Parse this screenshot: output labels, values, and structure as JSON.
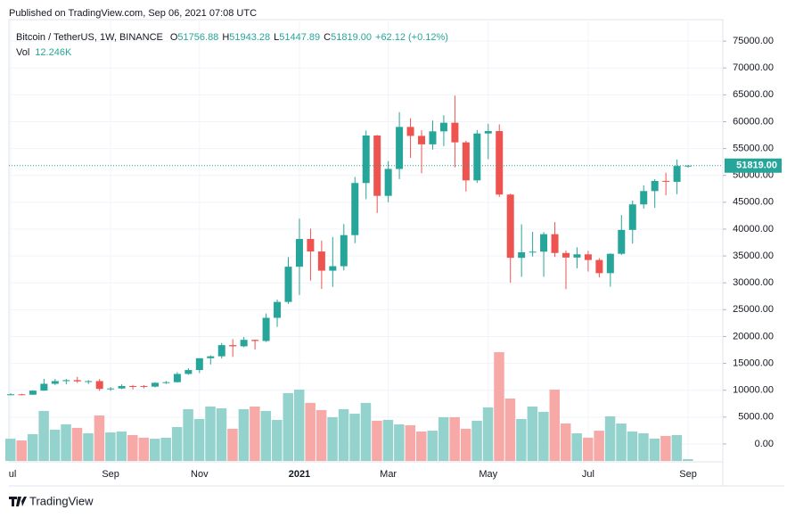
{
  "header": {
    "published": "Published on TradingView.com, Sep 06, 2021 07:08 UTC"
  },
  "footer": {
    "brand": "TradingView"
  },
  "legend": {
    "symbol": "Bitcoin / TetherUS, 1W, BINANCE",
    "o_label": "O",
    "open": "51756.88",
    "h_label": "H",
    "high": "51943.28",
    "l_label": "L",
    "low": "51447.89",
    "c_label": "C",
    "close": "51819.00",
    "change": "+62.12 (+0.12%)",
    "vol_label": "Vol",
    "volume": "12.246K"
  },
  "chart_data": {
    "type": "candlestick",
    "up_color": "#26a69a",
    "down_color": "#ef5350",
    "volume_up_color": "#94d3cd",
    "volume_down_color": "#f7a9a7",
    "grid": true,
    "categories": [
      "ul",
      null,
      null,
      null,
      null,
      null,
      null,
      null,
      null,
      "Sep",
      null,
      null,
      null,
      null,
      null,
      null,
      null,
      "Nov",
      null,
      null,
      null,
      null,
      null,
      null,
      null,
      null,
      "2021",
      null,
      null,
      null,
      null,
      null,
      null,
      null,
      "Mar",
      null,
      null,
      null,
      null,
      null,
      null,
      null,
      null,
      "May",
      null,
      null,
      null,
      null,
      null,
      null,
      null,
      null,
      "Jul",
      null,
      null,
      null,
      null,
      null,
      null,
      null,
      null,
      "Sep"
    ],
    "open": [
      9073,
      9243,
      9165,
      9930,
      11200,
      11700,
      11880,
      11650,
      11700,
      10250,
      10330,
      10780,
      10770,
      10670,
      11380,
      11500,
      13030,
      13760,
      15960,
      16320,
      18400,
      18180,
      19380,
      19170,
      23480,
      26440,
      33000,
      38160,
      35830,
      32260,
      33090,
      38880,
      48580,
      57420,
      46190,
      51200,
      59020,
      57350,
      55780,
      58200,
      59800,
      56150,
      49070,
      57800,
      58250,
      46430,
      34650,
      35680,
      35800,
      39050,
      35550,
      34700,
      35300,
      34250,
      31800,
      35400,
      39850,
      44600,
      47080,
      48970,
      48800,
      51756.88
    ],
    "high": [
      9450,
      9350,
      10000,
      12120,
      12100,
      12100,
      12480,
      11880,
      12090,
      10580,
      11100,
      10990,
      10950,
      11500,
      11720,
      13350,
      14100,
      15960,
      16480,
      18800,
      19500,
      19920,
      19420,
      24300,
      26880,
      34780,
      41950,
      40100,
      37860,
      38530,
      40950,
      49700,
      58350,
      57530,
      52640,
      61780,
      60630,
      58400,
      60200,
      61200,
      64850,
      56450,
      58450,
      59600,
      59500,
      46600,
      40900,
      39480,
      39450,
      41300,
      36000,
      36600,
      35950,
      34600,
      35480,
      42600,
      45300,
      48150,
      49300,
      50500,
      52950,
      51943.28
    ],
    "low": [
      9050,
      9050,
      9130,
      9900,
      10970,
      11120,
      11370,
      11150,
      9880,
      9880,
      10200,
      10140,
      10370,
      10530,
      11180,
      11410,
      12880,
      13200,
      14800,
      15900,
      16200,
      18000,
      17570,
      19000,
      21800,
      26100,
      27730,
      30420,
      28850,
      29240,
      32300,
      37380,
      45570,
      43000,
      45000,
      49300,
      53250,
      50400,
      54800,
      55450,
      51500,
      47000,
      48600,
      53000,
      46000,
      30000,
      31100,
      34900,
      31100,
      34800,
      28800,
      32700,
      32100,
      31000,
      29280,
      35200,
      37300,
      43800,
      43950,
      46300,
      46500,
      51447.89
    ],
    "close": [
      9243,
      9165,
      9930,
      11200,
      11700,
      11880,
      11650,
      11700,
      10250,
      10330,
      10780,
      10770,
      10670,
      11380,
      11500,
      13030,
      13760,
      15960,
      16320,
      18400,
      18180,
      19380,
      19170,
      23480,
      26440,
      33000,
      38160,
      35830,
      32260,
      33090,
      38880,
      48580,
      57420,
      46190,
      51200,
      59020,
      57350,
      55780,
      58200,
      59800,
      56150,
      49070,
      57800,
      58250,
      46430,
      34650,
      35680,
      35800,
      39050,
      35550,
      34700,
      35300,
      34250,
      31800,
      35400,
      39850,
      44600,
      47080,
      48970,
      48800,
      51750,
      51819.0
    ],
    "volume": [
      152,
      140,
      183,
      342,
      214,
      250,
      226,
      189,
      311,
      195,
      201,
      177,
      159,
      152,
      159,
      232,
      354,
      287,
      372,
      360,
      220,
      354,
      372,
      342,
      281,
      464,
      488,
      397,
      348,
      299,
      354,
      323,
      397,
      275,
      281,
      250,
      244,
      201,
      207,
      299,
      299,
      220,
      275,
      366,
      744,
      427,
      287,
      372,
      336,
      488,
      256,
      189,
      159,
      207,
      305,
      256,
      201,
      189,
      153,
      171,
      177,
      12.246
    ],
    "last_price_label": "51819.00",
    "ylim": [
      -3330,
      79000
    ],
    "yticks": [
      {
        "value": 0,
        "label": "0.00"
      },
      {
        "value": 5000,
        "label": "5000.00"
      },
      {
        "value": 10000,
        "label": "10000.00"
      },
      {
        "value": 15000,
        "label": "15000.00"
      },
      {
        "value": 20000,
        "label": "20000.00"
      },
      {
        "value": 25000,
        "label": "25000.00"
      },
      {
        "value": 30000,
        "label": "30000.00"
      },
      {
        "value": 35000,
        "label": "35000.00"
      },
      {
        "value": 40000,
        "label": "40000.00"
      },
      {
        "value": 45000,
        "label": "45000.00"
      },
      {
        "value": 50000,
        "label": "50000.00"
      },
      {
        "value": 55000,
        "label": "55000.00"
      },
      {
        "value": 60000,
        "label": "60000.00"
      },
      {
        "value": 65000,
        "label": "65000.00"
      },
      {
        "value": 70000,
        "label": "70000.00"
      },
      {
        "value": 75000,
        "label": "75000.00"
      }
    ]
  }
}
